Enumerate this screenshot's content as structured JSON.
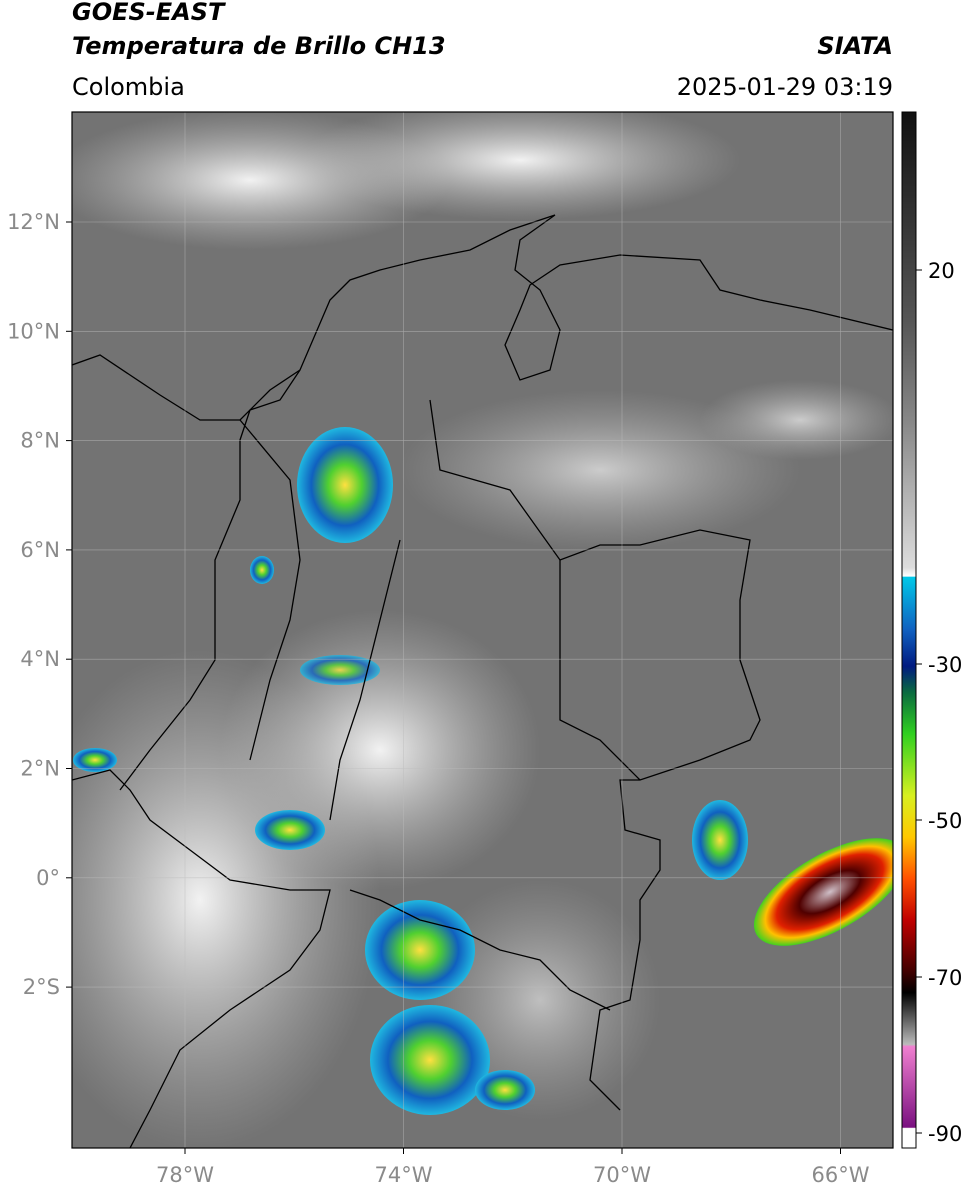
{
  "header": {
    "satellite": "GOES-EAST",
    "product": "Temperatura de Brillo CH13",
    "source": "SIATA",
    "region": "Colombia",
    "timestamp": "2025-01-29 03:19"
  },
  "map": {
    "lon_labels": [
      "78°W",
      "74°W",
      "70°W",
      "66°W"
    ],
    "lat_labels": [
      "12°N",
      "10°N",
      "8°N",
      "6°N",
      "4°N",
      "2°N",
      "0°",
      "2°S"
    ]
  },
  "colorbar": {
    "tick_labels": [
      "20",
      "-30",
      "-50",
      "-70",
      "-90"
    ]
  }
}
